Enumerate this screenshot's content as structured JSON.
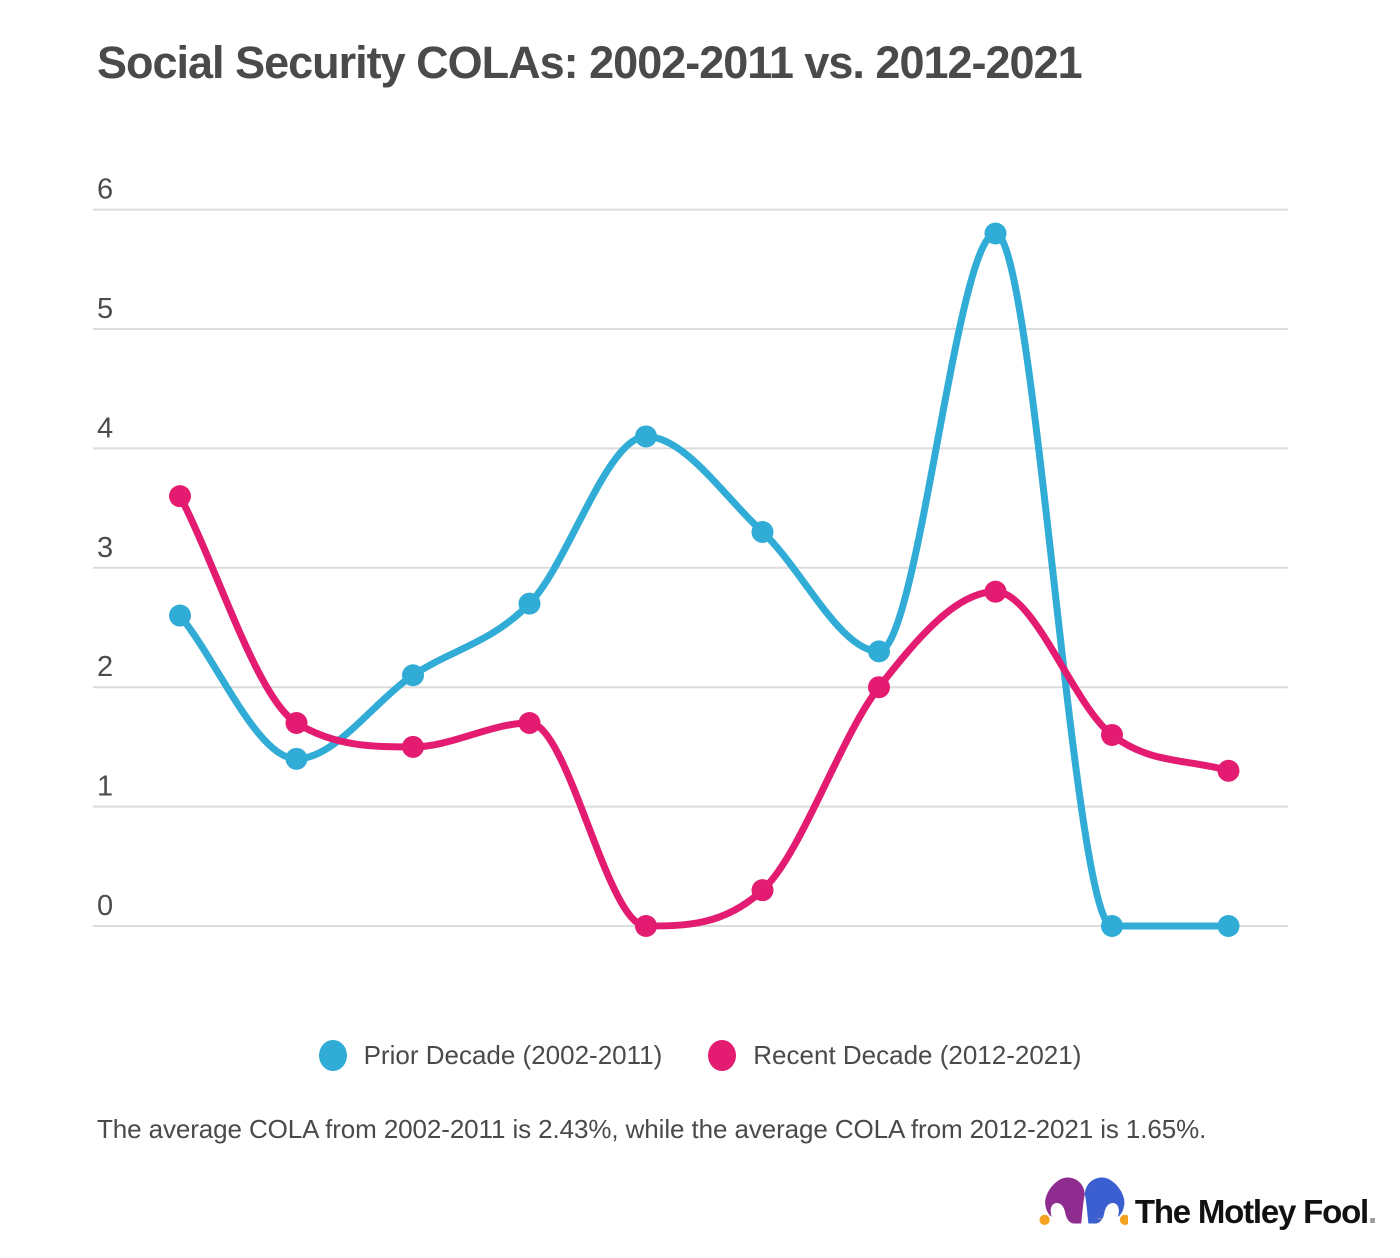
{
  "header": {
    "title": "Social Security COLAs: 2002-2011 vs. 2012-2021"
  },
  "chart_data": {
    "type": "line",
    "title": "Social Security COLAs: 2002-2011 vs. 2012-2021",
    "curve": "smooth",
    "x_count": 10,
    "x_axis_labels_shown": false,
    "series": [
      {
        "name": "Prior Decade (2002-2011)",
        "color": "#31ACD6",
        "values": [
          2.6,
          1.4,
          2.1,
          2.7,
          4.1,
          3.3,
          2.3,
          5.8,
          0,
          0
        ]
      },
      {
        "name": "Recent Decade (2012-2021)",
        "color": "#E31C72",
        "values": [
          3.6,
          1.7,
          1.5,
          1.7,
          0,
          0.3,
          2,
          2.8,
          1.6,
          1.3
        ]
      }
    ],
    "xlabel": "",
    "ylabel": "",
    "ylim": [
      0,
      6
    ],
    "yticks": [
      0,
      1,
      2,
      3,
      4,
      5,
      6
    ],
    "grid": "horizontal",
    "grid_color": "#dcdcdc",
    "axis_label_color": "#4c4c4c",
    "legend_position": "bottom"
  },
  "caption": {
    "text": "The average COLA from 2002-2011 is 2.43%, while the average COLA from 2012-2021 is 1.65%."
  },
  "logo": {
    "text": "The Motley Fool",
    "period": ".",
    "trademark": "™",
    "colors": {
      "purple": "#8E2C8F",
      "blue": "#3B5FD0",
      "gold": "#F5A21F",
      "wordmark": "#111111",
      "period_gray": "#9B9B9B"
    }
  }
}
